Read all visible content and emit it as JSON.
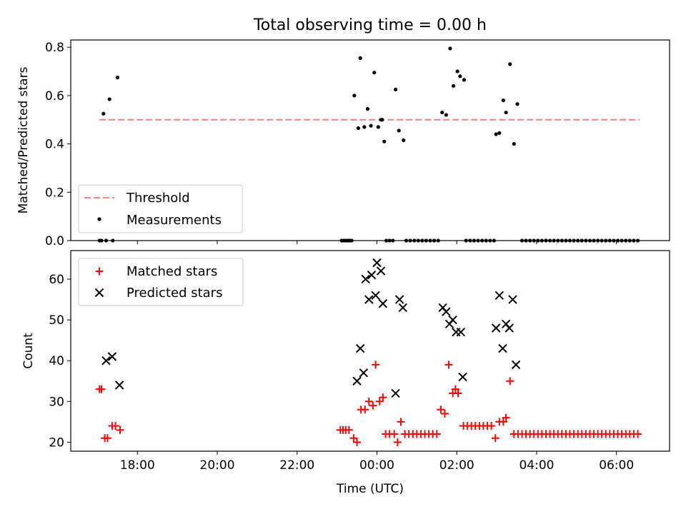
{
  "title": "Total observing time = 0.00 h",
  "xlabel": "Time (UTC)",
  "x_ticks": [
    "18:00",
    "20:00",
    "22:00",
    "00:00",
    "02:00",
    "04:00",
    "06:00"
  ],
  "colors": {
    "threshold": "#ff7f7f",
    "measurements": "#000000",
    "matched": "#ff0000",
    "predicted": "#000000"
  },
  "chart_data": [
    {
      "type": "scatter",
      "ylabel": "Matched/Predicted stars",
      "xlim_hours": [
        16.33,
        31.33
      ],
      "ylim": [
        0,
        0.83
      ],
      "y_ticks": [
        "0.0",
        "0.2",
        "0.4",
        "0.6",
        "0.8"
      ],
      "legend": {
        "position": "lower-left",
        "entries": [
          "Threshold",
          "Measurements"
        ]
      },
      "threshold": {
        "name": "Threshold",
        "y": 0.5,
        "x_start": "17:03",
        "x_end": "06:35"
      },
      "series": [
        {
          "name": "Measurements",
          "points": [
            [
              "17:03",
              0
            ],
            [
              "17:06",
              0
            ],
            [
              "17:09",
              0.525
            ],
            [
              "17:13",
              0
            ],
            [
              "17:18",
              0.585
            ],
            [
              "17:23",
              0
            ],
            [
              "17:30",
              0.675
            ],
            [
              "23:07",
              0
            ],
            [
              "23:10",
              0
            ],
            [
              "23:13",
              0
            ],
            [
              "23:16",
              0
            ],
            [
              "23:19",
              0
            ],
            [
              "23:22",
              0
            ],
            [
              "23:26",
              0.6
            ],
            [
              "23:32",
              0.465
            ],
            [
              "23:35",
              0.755
            ],
            [
              "23:41",
              0.47
            ],
            [
              "23:46",
              0.545
            ],
            [
              "23:51",
              0.475
            ],
            [
              "23:56",
              0.695
            ],
            [
              "00:02",
              0.47
            ],
            [
              "00:06",
              0.5
            ],
            [
              "00:08",
              0.5
            ],
            [
              "00:11",
              0.41
            ],
            [
              "00:14",
              0
            ],
            [
              "00:19",
              0
            ],
            [
              "00:24",
              0
            ],
            [
              "00:28",
              0.625
            ],
            [
              "00:33",
              0.455
            ],
            [
              "00:40",
              0.415
            ],
            [
              "00:44",
              0
            ],
            [
              "00:50",
              0
            ],
            [
              "00:56",
              0
            ],
            [
              "01:02",
              0
            ],
            [
              "01:08",
              0
            ],
            [
              "01:14",
              0
            ],
            [
              "01:20",
              0
            ],
            [
              "01:26",
              0
            ],
            [
              "01:32",
              0
            ],
            [
              "01:38",
              0.53
            ],
            [
              "01:44",
              0.52
            ],
            [
              "01:50",
              0.795
            ],
            [
              "01:55",
              0.64
            ],
            [
              "02:01",
              0.7
            ],
            [
              "02:05",
              0.68
            ],
            [
              "02:11",
              0.665
            ],
            [
              "02:14",
              0
            ],
            [
              "02:20",
              0
            ],
            [
              "02:26",
              0
            ],
            [
              "02:32",
              0
            ],
            [
              "02:38",
              0
            ],
            [
              "02:44",
              0
            ],
            [
              "02:50",
              0
            ],
            [
              "02:56",
              0
            ],
            [
              "02:59",
              0.44
            ],
            [
              "03:04",
              0.445
            ],
            [
              "03:10",
              0.58
            ],
            [
              "03:14",
              0.53
            ],
            [
              "03:20",
              0.73
            ],
            [
              "03:26",
              0.4
            ],
            [
              "03:31",
              0.565
            ],
            [
              "03:38",
              0
            ],
            [
              "03:44",
              0
            ],
            [
              "03:50",
              0
            ],
            [
              "03:56",
              0
            ],
            [
              "04:02",
              0
            ],
            [
              "04:08",
              0
            ],
            [
              "04:14",
              0
            ],
            [
              "04:20",
              0
            ],
            [
              "04:26",
              0
            ],
            [
              "04:32",
              0
            ],
            [
              "04:38",
              0
            ],
            [
              "04:44",
              0
            ],
            [
              "04:50",
              0
            ],
            [
              "04:56",
              0
            ],
            [
              "05:02",
              0
            ],
            [
              "05:08",
              0
            ],
            [
              "05:14",
              0
            ],
            [
              "05:20",
              0
            ],
            [
              "05:26",
              0
            ],
            [
              "05:32",
              0
            ],
            [
              "05:38",
              0
            ],
            [
              "05:44",
              0
            ],
            [
              "05:50",
              0
            ],
            [
              "05:56",
              0
            ],
            [
              "06:02",
              0
            ],
            [
              "06:08",
              0
            ],
            [
              "06:14",
              0
            ],
            [
              "06:20",
              0
            ],
            [
              "06:26",
              0
            ],
            [
              "06:32",
              0
            ]
          ]
        }
      ]
    },
    {
      "type": "scatter",
      "ylabel": "Count",
      "xlabel": "Time (UTC)",
      "xlim_hours": [
        16.33,
        31.33
      ],
      "ylim": [
        17.8,
        67
      ],
      "y_ticks": [
        "20",
        "30",
        "40",
        "50",
        "60"
      ],
      "legend": {
        "position": "upper-left",
        "entries": [
          "Matched stars",
          "Predicted stars"
        ]
      },
      "series": [
        {
          "name": "Matched stars",
          "points": [
            [
              "17:03",
              33
            ],
            [
              "17:06",
              33
            ],
            [
              "17:11",
              21
            ],
            [
              "17:15",
              21
            ],
            [
              "17:22",
              24
            ],
            [
              "17:27",
              24
            ],
            [
              "17:34",
              23
            ],
            [
              "23:05",
              23
            ],
            [
              "23:09",
              23
            ],
            [
              "23:13",
              23
            ],
            [
              "23:18",
              23
            ],
            [
              "23:25",
              21
            ],
            [
              "23:30",
              20
            ],
            [
              "23:36",
              28
            ],
            [
              "23:42",
              28
            ],
            [
              "23:48",
              30
            ],
            [
              "23:54",
              29
            ],
            [
              "23:58",
              39
            ],
            [
              "00:04",
              30
            ],
            [
              "00:09",
              31
            ],
            [
              "00:13",
              22
            ],
            [
              "00:19",
              22
            ],
            [
              "00:26",
              22
            ],
            [
              "00:31",
              20
            ],
            [
              "00:36",
              25
            ],
            [
              "00:42",
              22
            ],
            [
              "00:48",
              22
            ],
            [
              "00:54",
              22
            ],
            [
              "01:00",
              22
            ],
            [
              "01:06",
              22
            ],
            [
              "01:12",
              22
            ],
            [
              "01:18",
              22
            ],
            [
              "01:24",
              22
            ],
            [
              "01:30",
              22
            ],
            [
              "01:36",
              28
            ],
            [
              "01:42",
              27
            ],
            [
              "01:48",
              39
            ],
            [
              "01:54",
              32
            ],
            [
              "01:58",
              33
            ],
            [
              "02:02",
              32
            ],
            [
              "02:10",
              24
            ],
            [
              "02:16",
              24
            ],
            [
              "02:22",
              24
            ],
            [
              "02:28",
              24
            ],
            [
              "02:34",
              24
            ],
            [
              "02:40",
              24
            ],
            [
              "02:46",
              24
            ],
            [
              "02:52",
              24
            ],
            [
              "02:58",
              21
            ],
            [
              "03:04",
              25
            ],
            [
              "03:10",
              25
            ],
            [
              "03:14",
              26
            ],
            [
              "03:20",
              35
            ],
            [
              "03:26",
              22
            ],
            [
              "03:32",
              22
            ],
            [
              "03:38",
              22
            ],
            [
              "03:44",
              22
            ],
            [
              "03:50",
              22
            ],
            [
              "03:56",
              22
            ],
            [
              "04:02",
              22
            ],
            [
              "04:08",
              22
            ],
            [
              "04:14",
              22
            ],
            [
              "04:20",
              22
            ],
            [
              "04:26",
              22
            ],
            [
              "04:32",
              22
            ],
            [
              "04:38",
              22
            ],
            [
              "04:44",
              22
            ],
            [
              "04:50",
              22
            ],
            [
              "04:56",
              22
            ],
            [
              "05:02",
              22
            ],
            [
              "05:08",
              22
            ],
            [
              "05:14",
              22
            ],
            [
              "05:20",
              22
            ],
            [
              "05:26",
              22
            ],
            [
              "05:32",
              22
            ],
            [
              "05:38",
              22
            ],
            [
              "05:44",
              22
            ],
            [
              "05:50",
              22
            ],
            [
              "05:56",
              22
            ],
            [
              "06:02",
              22
            ],
            [
              "06:08",
              22
            ],
            [
              "06:14",
              22
            ],
            [
              "06:20",
              22
            ],
            [
              "06:26",
              22
            ],
            [
              "06:32",
              22
            ]
          ]
        },
        {
          "name": "Predicted stars",
          "points": [
            [
              "17:13",
              40
            ],
            [
              "17:22",
              41
            ],
            [
              "17:33",
              34
            ],
            [
              "23:30",
              35
            ],
            [
              "23:35",
              43
            ],
            [
              "23:40",
              37
            ],
            [
              "23:43",
              60
            ],
            [
              "23:48",
              55
            ],
            [
              "23:52",
              61
            ],
            [
              "23:58",
              56
            ],
            [
              "00:00",
              64
            ],
            [
              "00:06",
              62
            ],
            [
              "00:09",
              54
            ],
            [
              "00:28",
              32
            ],
            [
              "00:34",
              55
            ],
            [
              "00:39",
              53
            ],
            [
              "01:39",
              53
            ],
            [
              "01:44",
              52
            ],
            [
              "01:49",
              49
            ],
            [
              "01:54",
              50
            ],
            [
              "01:59",
              47
            ],
            [
              "02:06",
              47
            ],
            [
              "02:09",
              36
            ],
            [
              "02:59",
              48
            ],
            [
              "03:04",
              56
            ],
            [
              "03:09",
              43
            ],
            [
              "03:14",
              49
            ],
            [
              "03:19",
              48
            ],
            [
              "03:24",
              55
            ],
            [
              "03:29",
              39
            ]
          ]
        }
      ]
    }
  ]
}
